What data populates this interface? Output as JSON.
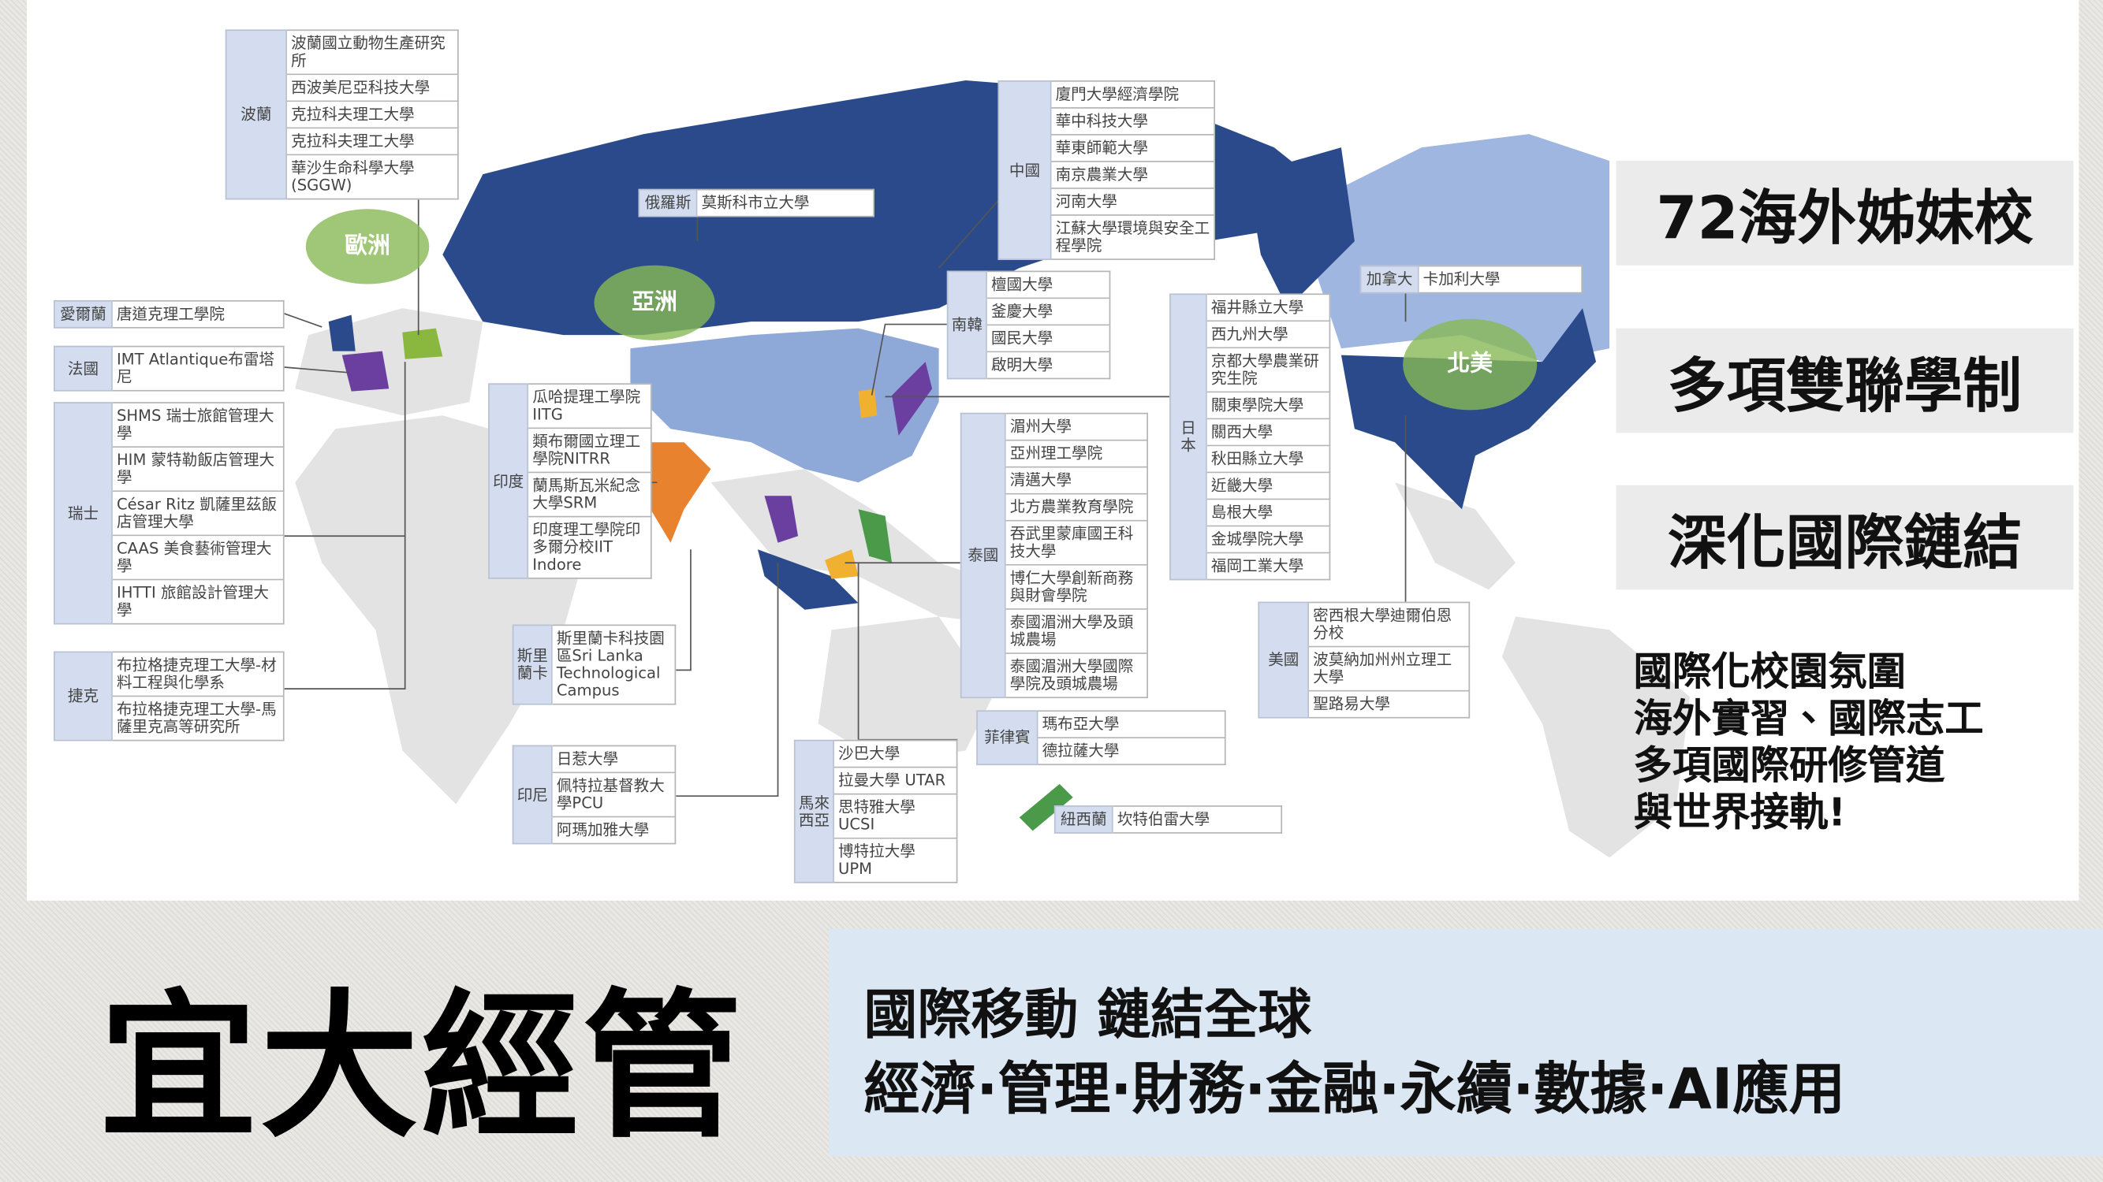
{
  "map": {
    "regions": [
      "歐洲",
      "亞洲",
      "北美"
    ],
    "groups": [
      {
        "country": "波蘭",
        "schools": [
          "波蘭國立動物生產研究所",
          "西波美尼亞科技大學",
          "克拉科夫理工大學",
          "克拉科夫理工大學",
          "華沙生命科學大學(SGGW)"
        ]
      },
      {
        "country": "愛爾蘭",
        "schools": [
          "唐道克理工學院"
        ]
      },
      {
        "country": "法國",
        "schools": [
          "IMT Atlantique布雷塔尼"
        ]
      },
      {
        "country": "瑞士",
        "schools": [
          "SHMS 瑞士旅館管理大學",
          "HIM 蒙特勒飯店管理大學",
          "César Ritz 凱薩里茲飯店管理大學",
          "CAAS 美食藝術管理大學",
          "IHTTI 旅館設計管理大學"
        ]
      },
      {
        "country": "捷克",
        "schools": [
          "布拉格捷克理工大學-材料工程與化學系",
          "布拉格捷克理工大學-馬薩里克高等研究所"
        ]
      },
      {
        "country": "俄羅斯",
        "schools": [
          "莫斯科市立大學"
        ]
      },
      {
        "country": "中國",
        "schools": [
          "廈門大學經濟學院",
          "華中科技大學",
          "華東師範大學",
          "南京農業大學",
          "河南大學",
          "江蘇大學環境與安全工程學院"
        ]
      },
      {
        "country": "南韓",
        "schools": [
          "檀國大學",
          "釜慶大學",
          "國民大學",
          "啟明大學"
        ]
      },
      {
        "country": "印度",
        "schools": [
          "瓜哈提理工學院IITG",
          "類布爾國立理工學院NITRR",
          "蘭馬斯瓦米紀念大學SRM",
          "印度理工學院印多爾分校IIT Indore"
        ]
      },
      {
        "country": "斯里蘭卡",
        "schools": [
          "斯里蘭卡科技園區Sri Lanka Technological Campus"
        ]
      },
      {
        "country": "印尼",
        "schools": [
          "日惹大學",
          "佩特拉基督教大學PCU",
          "阿瑪加雅大學"
        ]
      },
      {
        "country": "泰國",
        "schools": [
          "湄州大學",
          "亞州理工學院",
          "清邁大學",
          "北方農業教育學院",
          "吞武里蒙庫國王科技大學",
          "博仁大學創新商務與財會學院",
          "泰國湄洲大學及頭城農場",
          "泰國湄洲大學國際學院及頭城農場"
        ]
      },
      {
        "country": "馬來西亞",
        "schools": [
          "沙巴大學",
          "拉曼大學 UTAR",
          "思特雅大學 UCSI",
          "博特拉大學 UPM"
        ]
      },
      {
        "country": "菲律賓",
        "schools": [
          "瑪布亞大學",
          "德拉薩大學"
        ]
      },
      {
        "country": "紐西蘭",
        "schools": [
          "坎特伯雷大學"
        ]
      },
      {
        "country": "日本",
        "schools": [
          "福井縣立大學",
          "西九州大學",
          "京都大學農業研究生院",
          "關東學院大學",
          "關西大學",
          "秋田縣立大學",
          "近畿大學",
          "島根大學",
          "金城學院大學",
          "福岡工業大學"
        ]
      },
      {
        "country": "加拿大",
        "schools": [
          "卡加利大學"
        ]
      },
      {
        "country": "美國",
        "schools": [
          "密西根大學迪爾伯恩分校",
          "波莫納加州州立理工大學",
          "聖路易大學"
        ]
      }
    ]
  },
  "highlights": [
    "72海外姊妹校",
    "多項雙聯學制",
    "深化國際鏈結"
  ],
  "features": [
    "國際化校園氛圍",
    "海外實習、國際志工",
    "多項國際研修管道",
    "與世界接軌!"
  ],
  "footer": {
    "title": "宜大經管",
    "tagline": "國際移動 鏈結全球",
    "fields": "經濟·管理·財務·金融·永續·數據·AI應用"
  }
}
